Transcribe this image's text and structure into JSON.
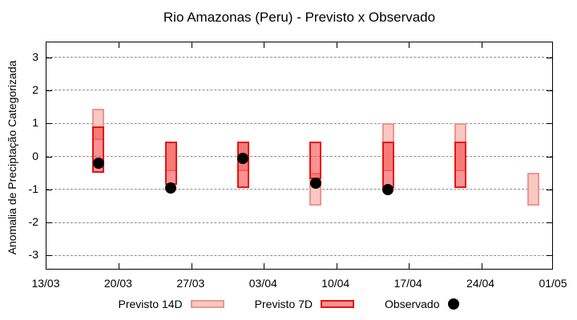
{
  "title": "Rio Amazonas (Peru) - Previsto x Observado",
  "y_axis": {
    "label": "Anomalia de Preciptação Categorizada"
  },
  "legend": {
    "previsto_14d": "Previsto 14D",
    "previsto_7d": "Previsto 7D",
    "observado": "Observado"
  },
  "colors": {
    "previsto_14d_fill": "#f9c8c2",
    "previsto_14d_border": "#ef948c",
    "previsto_7d_fill": "rgba(248,60,60,0.56)",
    "previsto_7d_border": "#e61410",
    "observado": "#000000",
    "grid": "#8c8c8c",
    "axis": "#000000"
  },
  "chart_data": {
    "type": "candlestick-range-with-points",
    "title": "Rio Amazonas (Peru) - Previsto x Observado",
    "xlabel": "",
    "ylabel": "Anomalia de Preciptação Categorizada",
    "ylim": [
      -3.45,
      3.45
    ],
    "y_ticks": [
      3,
      2,
      1,
      0,
      -1,
      -2,
      -3
    ],
    "grid": "horizontal-dashed",
    "legend_position": "below-center",
    "x_ticks": [
      {
        "label": "13/03",
        "day": 0
      },
      {
        "label": "20/03",
        "day": 7
      },
      {
        "label": "27/03",
        "day": 14
      },
      {
        "label": "03/04",
        "day": 21
      },
      {
        "label": "10/04",
        "day": 28
      },
      {
        "label": "17/04",
        "day": 35
      },
      {
        "label": "24/04",
        "day": 42
      },
      {
        "label": "01/05",
        "day": 49
      }
    ],
    "x_days_total": 49,
    "series_names": [
      "Previsto 14D",
      "Previsto 7D",
      "Observado"
    ],
    "groups": [
      {
        "date": "18/03",
        "day": 5,
        "previsto_14d": [
          0.5,
          1.45
        ],
        "previsto_7d": [
          -0.5,
          0.9
        ],
        "observado": -0.2
      },
      {
        "date": "25/03",
        "day": 12,
        "previsto_14d": [
          -0.45,
          0.45
        ],
        "previsto_7d": [
          -0.85,
          0.45
        ],
        "observado": -0.95
      },
      {
        "date": "01/04",
        "day": 19,
        "previsto_14d": [
          -0.45,
          0.45
        ],
        "previsto_7d": [
          -0.95,
          0.45
        ],
        "observado": -0.05
      },
      {
        "date": "08/04",
        "day": 26,
        "previsto_14d": [
          -1.5,
          -0.5
        ],
        "previsto_7d": [
          -0.7,
          0.45
        ],
        "observado": -0.8
      },
      {
        "date": "15/04",
        "day": 33,
        "previsto_14d": [
          -0.45,
          1.0
        ],
        "previsto_7d": [
          -0.95,
          0.45
        ],
        "observado": -1.0
      },
      {
        "date": "22/04",
        "day": 40,
        "previsto_14d": [
          -0.45,
          1.0
        ],
        "previsto_7d": [
          -0.95,
          0.45
        ],
        "observado": null
      },
      {
        "date": "29/04",
        "day": 47,
        "previsto_14d": [
          -1.5,
          -0.5
        ],
        "previsto_7d": null,
        "observado": null
      }
    ]
  }
}
